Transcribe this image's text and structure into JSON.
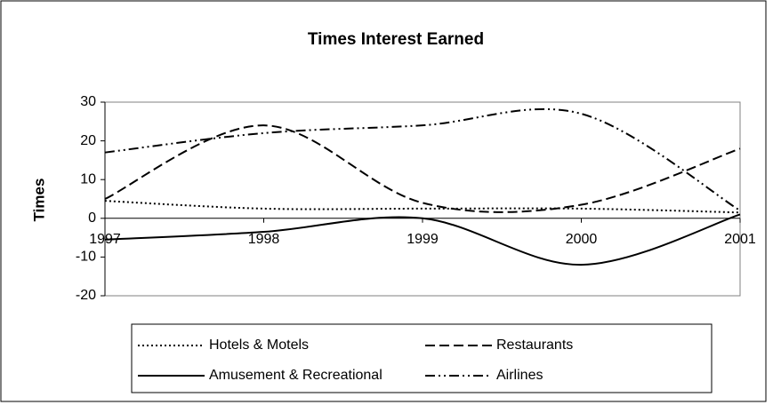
{
  "chart_data": {
    "type": "line",
    "title": "Times Interest Earned",
    "y_label": "Times",
    "x": [
      1997,
      1998,
      1999,
      2000,
      2001
    ],
    "xlim": [
      1997,
      2001
    ],
    "xticks": [
      1997,
      1998,
      1999,
      2000,
      2001
    ],
    "ylim": [
      -20,
      30
    ],
    "yticks": [
      -20,
      -10,
      0,
      10,
      20,
      30
    ],
    "grid": false,
    "legend": "bottom",
    "series": [
      {
        "name": "Hotels & Motels",
        "color": "#000000",
        "dash": "dotted",
        "values": [
          4.5,
          2.5,
          2.5,
          2.5,
          1.5
        ]
      },
      {
        "name": "Restaurants",
        "color": "#000000",
        "dash": "dashed",
        "values": [
          5,
          24,
          4,
          3.5,
          18
        ]
      },
      {
        "name": "Amusement & Recreational",
        "color": "#000000",
        "dash": "solid",
        "values": [
          -5.5,
          -3.5,
          0,
          -12,
          1
        ]
      },
      {
        "name": "Airlines",
        "color": "#000000",
        "dash": "dash-dot-dot",
        "values": [
          17,
          22,
          24,
          27,
          2
        ]
      }
    ]
  }
}
